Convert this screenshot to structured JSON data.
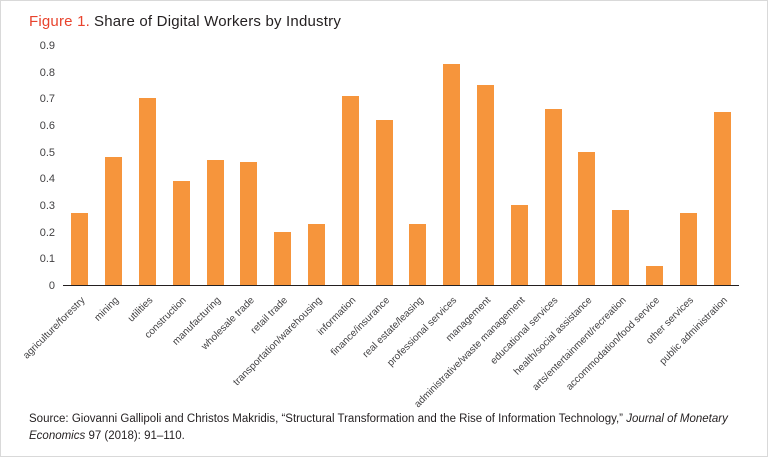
{
  "title": {
    "figure_label": "Figure 1.",
    "text": "Share of Digital Workers by Industry"
  },
  "chart_data": {
    "type": "bar",
    "title": "Share of Digital Workers by Industry",
    "categories": [
      "agriculture/forestry",
      "mining",
      "utilities",
      "construction",
      "manufacturing",
      "wholesale trade",
      "retail trade",
      "transportation/warehousing",
      "information",
      "finance/insurance",
      "real estate/leasing",
      "professional services",
      "management",
      "administrative/waste management",
      "educational services",
      "health/social assistance",
      "arts/entertainment/recreation",
      "accommodation/food service",
      "other services",
      "public administration"
    ],
    "values": [
      0.27,
      0.48,
      0.7,
      0.39,
      0.47,
      0.46,
      0.2,
      0.23,
      0.71,
      0.62,
      0.23,
      0.83,
      0.75,
      0.3,
      0.66,
      0.5,
      0.28,
      0.07,
      0.27,
      0.65
    ],
    "xlabel": "",
    "ylabel": "",
    "ylim": [
      0,
      0.9
    ],
    "yticks": [
      0,
      0.1,
      0.2,
      0.3,
      0.4,
      0.5,
      0.6,
      0.7,
      0.8,
      0.9
    ],
    "grid": false,
    "legend": false,
    "bar_color": "#f6953c"
  },
  "source": {
    "prefix": "Source: Giovanni Gallipoli and Christos Makridis, “Structural Transformation and the Rise of Information Technology,” ",
    "journal": "Journal of Monetary Economics",
    "suffix": " 97 (2018): 91–110."
  },
  "colors": {
    "accent_red": "#e8432d",
    "bar_orange": "#f6953c",
    "text_dark": "#231f20"
  }
}
